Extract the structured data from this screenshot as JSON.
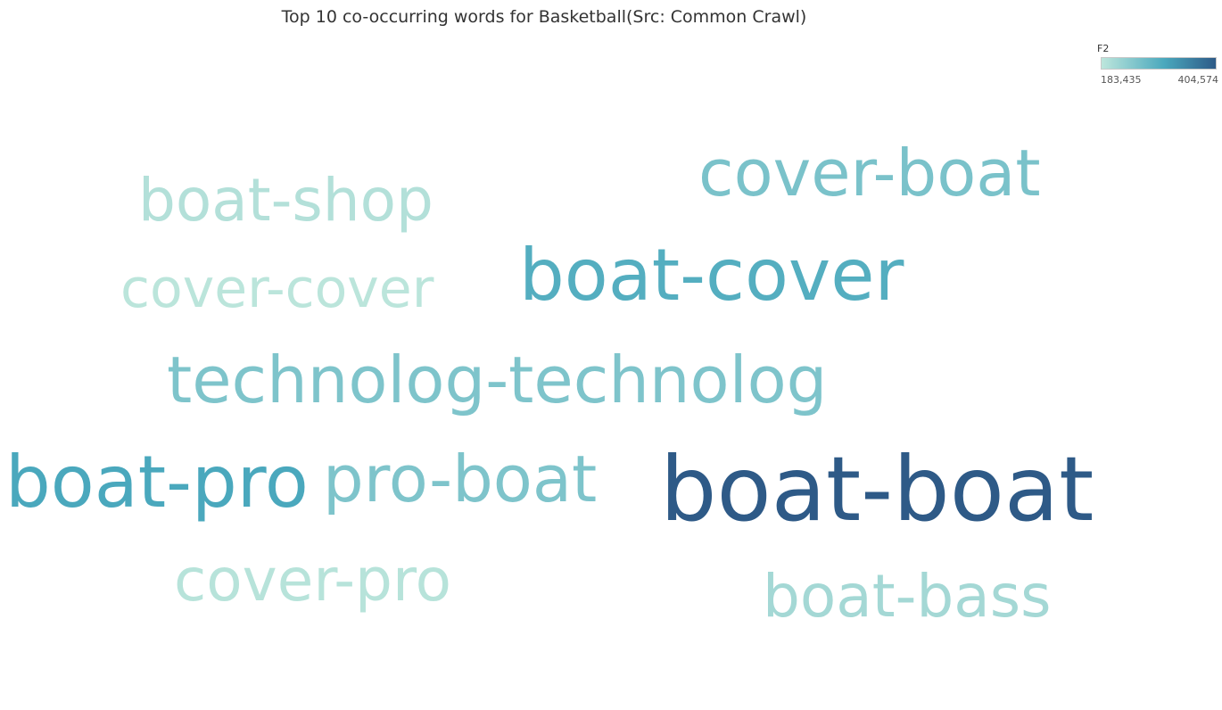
{
  "chart_data": {
    "type": "wordcloud",
    "title": "Top 10 co-occurring words for Basketball(Src: Common Crawl)",
    "color_legend": {
      "field": "F2",
      "min_label": "183,435",
      "max_label": "404,574",
      "min_color": "#bde6dc",
      "mid_color": "#4aa8bd",
      "max_color": "#2e5a87"
    },
    "words": [
      {
        "text": "boat-boat",
        "level": 1.0
      },
      {
        "text": "boat-pro",
        "level": 0.55
      },
      {
        "text": "boat-cover",
        "level": 0.5
      },
      {
        "text": "cover-boat",
        "level": 0.32
      },
      {
        "text": "pro-boat",
        "level": 0.3
      },
      {
        "text": "technolog-technolog",
        "level": 0.3
      },
      {
        "text": "boat-bass",
        "level": 0.12
      },
      {
        "text": "boat-shop",
        "level": 0.05
      },
      {
        "text": "cover-pro",
        "level": 0.03
      },
      {
        "text": "cover-cover",
        "level": 0.01
      }
    ]
  }
}
